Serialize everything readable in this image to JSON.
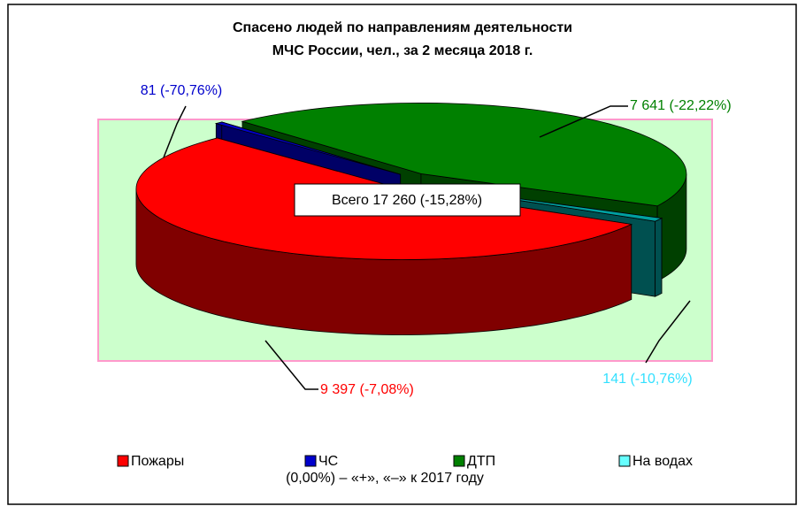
{
  "chart_data": {
    "type": "pie",
    "title": [
      "Спасено людей по направлениям деятельности",
      "МЧС России, чел., за 2 месяца 2018 г."
    ],
    "categories": [
      "Пожары",
      "ЧС",
      "ДТП",
      "На водах"
    ],
    "values": [
      9397,
      81,
      7641,
      141
    ],
    "value_labels": [
      "9 397 (-7,08%)",
      "81 (-70,76%)",
      "7 641 (-22,22%)",
      "141 (-10,76%)"
    ],
    "colors": [
      "#ff0000",
      "#0000cc",
      "#008000",
      "#00a0a0"
    ],
    "annotation": "Всего 17 260 (-15,28%)",
    "note": "(0,00%) – «+», «–» к 2017 году",
    "legend": "bottom"
  }
}
